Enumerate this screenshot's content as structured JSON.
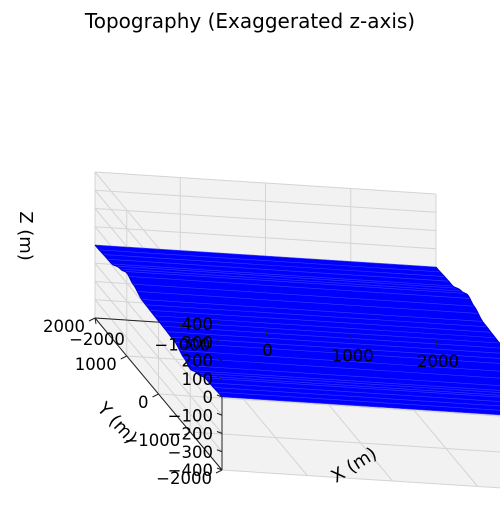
{
  "chart_data": {
    "type": "surface",
    "title": "Topography (Exaggerated z-axis)",
    "xlabel": "X (m)",
    "ylabel": "Y (m)",
    "zlabel": "Z (m)",
    "xlim": [
      -2000,
      2000
    ],
    "ylim": [
      -2000,
      2000
    ],
    "zlim": [
      -400,
      400
    ],
    "x_ticks": [
      "−2000",
      "−1000",
      "0",
      "1000",
      "2000"
    ],
    "y_ticks": [
      "−2000",
      "−1000",
      "0",
      "1000",
      "2000"
    ],
    "z_ticks": [
      "−400",
      "−300",
      "−200",
      "−100",
      "0",
      "100",
      "200",
      "300",
      "400"
    ],
    "surface_color": "#0000ff",
    "grid": true,
    "surface_description": "flat plain at z = 0 with a smooth bump along y, peak about 55 m near Y = 1000 m and trough about -55 m near Y = -1000 m",
    "surface_profile": {
      "y": [
        -2000,
        -1500,
        -1200,
        -1000,
        -800,
        -500,
        0,
        500,
        800,
        1000,
        1200,
        1500,
        2000
      ],
      "z": [
        0,
        -6,
        -35,
        -55,
        -35,
        -6,
        0,
        6,
        35,
        55,
        35,
        6,
        0
      ]
    }
  }
}
